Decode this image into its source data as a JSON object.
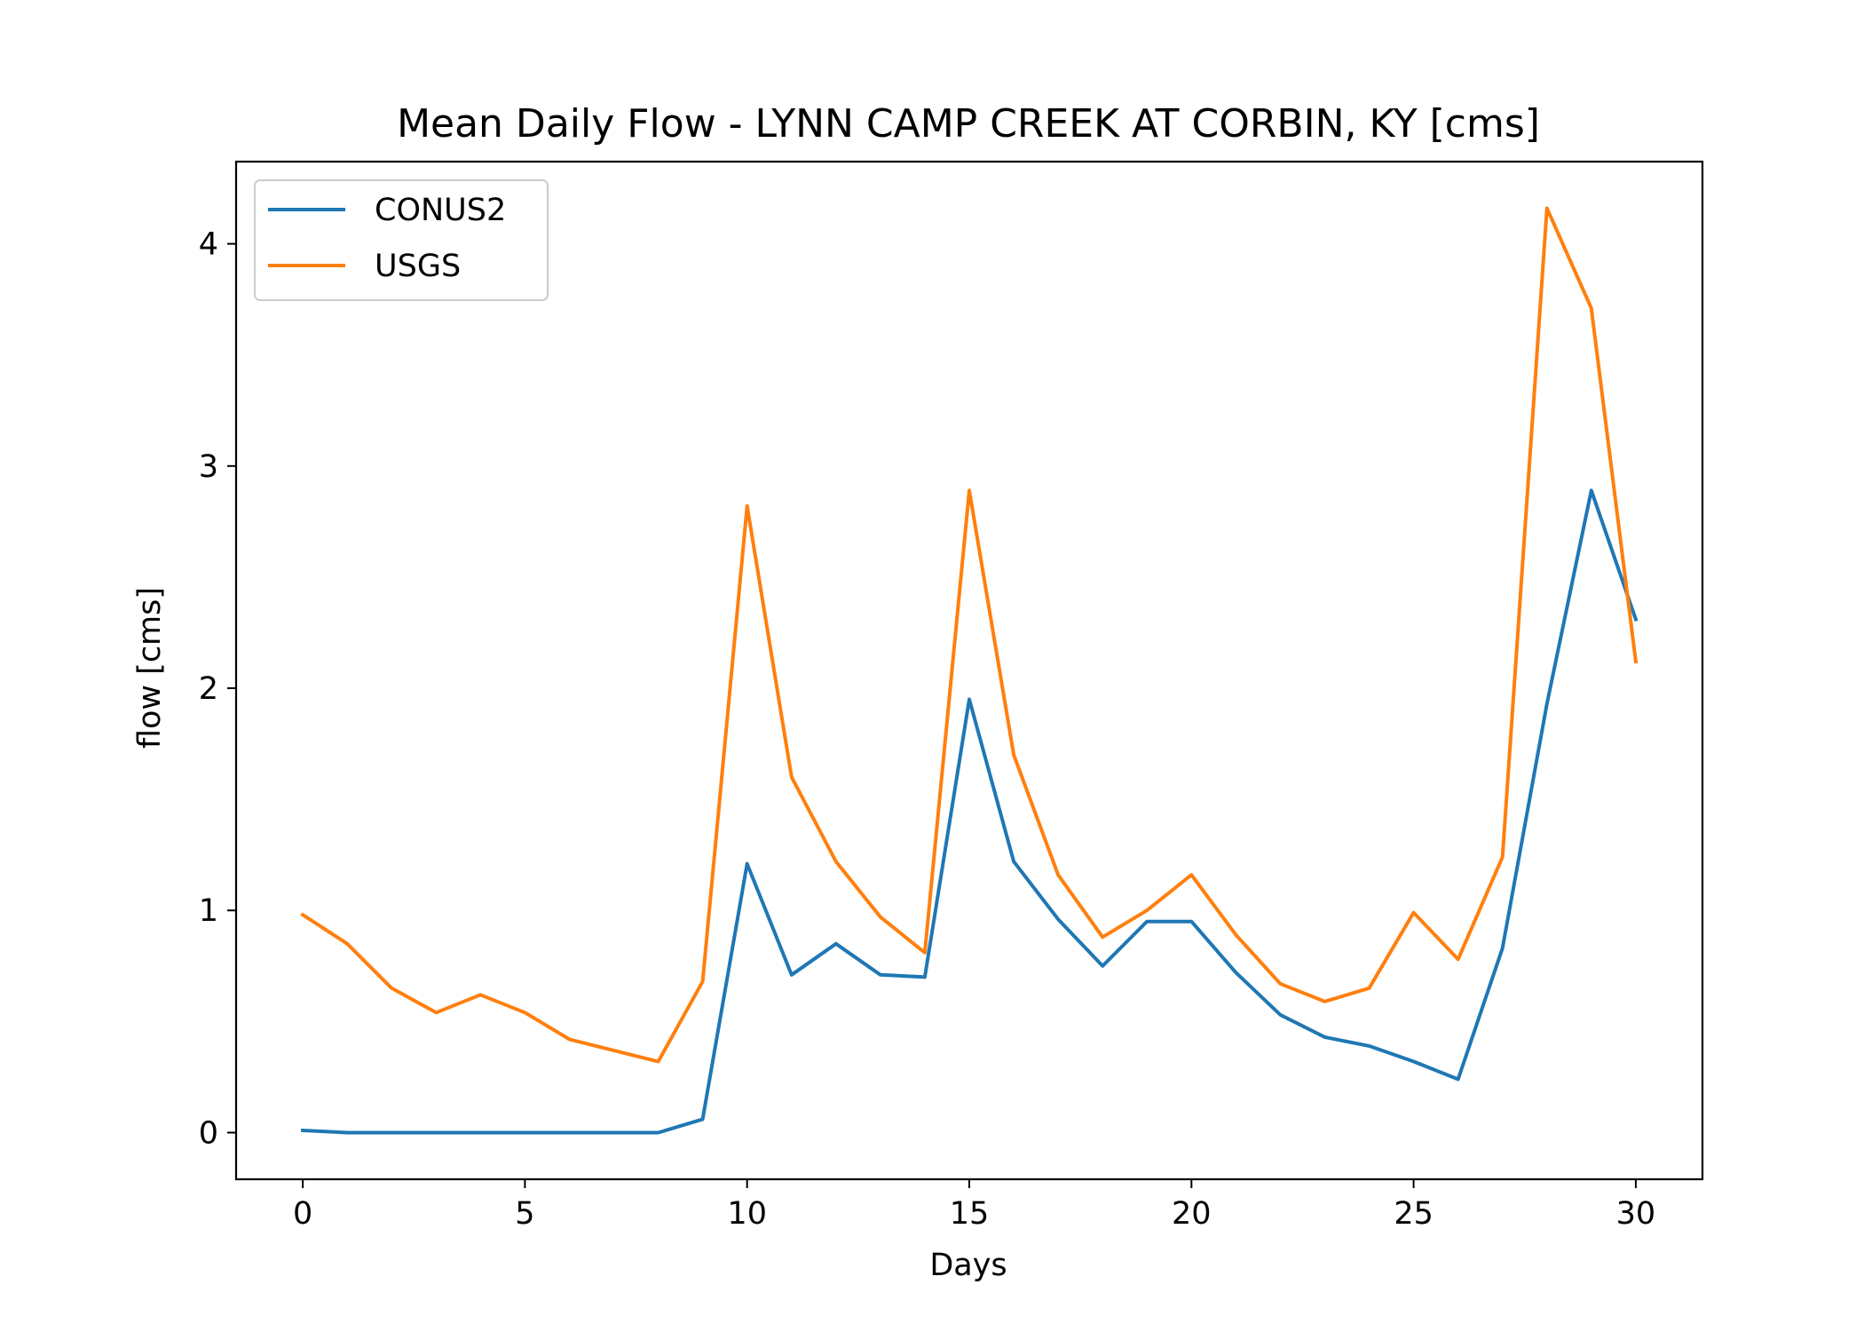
{
  "chart_data": {
    "type": "line",
    "title": "Mean Daily Flow - LYNN CAMP CREEK AT CORBIN, KY [cms]",
    "xlabel": "Days",
    "ylabel": "flow [cms]",
    "xlim": [
      -1.5,
      31.5
    ],
    "ylim": [
      -0.21,
      4.37
    ],
    "xticks": [
      0,
      5,
      10,
      15,
      20,
      25,
      30
    ],
    "yticks": [
      0,
      1,
      2,
      3,
      4
    ],
    "grid": false,
    "legend": "upper left",
    "x": [
      0,
      1,
      2,
      3,
      4,
      5,
      6,
      7,
      8,
      9,
      10,
      11,
      12,
      13,
      14,
      15,
      16,
      17,
      18,
      19,
      20,
      21,
      22,
      23,
      24,
      25,
      26,
      27,
      28,
      29,
      30
    ],
    "series": [
      {
        "name": "CONUS2",
        "color": "#1f77b4",
        "values": [
          0.01,
          0.0,
          0.0,
          0.0,
          0.0,
          0.0,
          0.0,
          0.0,
          0.0,
          0.06,
          1.21,
          0.71,
          0.85,
          0.71,
          0.7,
          1.95,
          1.22,
          0.96,
          0.75,
          0.95,
          0.95,
          0.72,
          0.53,
          0.43,
          0.39,
          0.32,
          0.24,
          0.83,
          1.93,
          2.89,
          2.31
        ]
      },
      {
        "name": "USGS",
        "color": "#ff7f0e",
        "values": [
          0.98,
          0.85,
          0.65,
          0.54,
          0.62,
          0.54,
          0.42,
          0.37,
          0.32,
          0.68,
          2.82,
          1.6,
          1.22,
          0.97,
          0.81,
          2.89,
          1.7,
          1.16,
          0.88,
          1.0,
          1.16,
          0.89,
          0.67,
          0.59,
          0.65,
          0.99,
          0.78,
          1.24,
          4.16,
          3.71,
          2.12
        ]
      }
    ]
  }
}
